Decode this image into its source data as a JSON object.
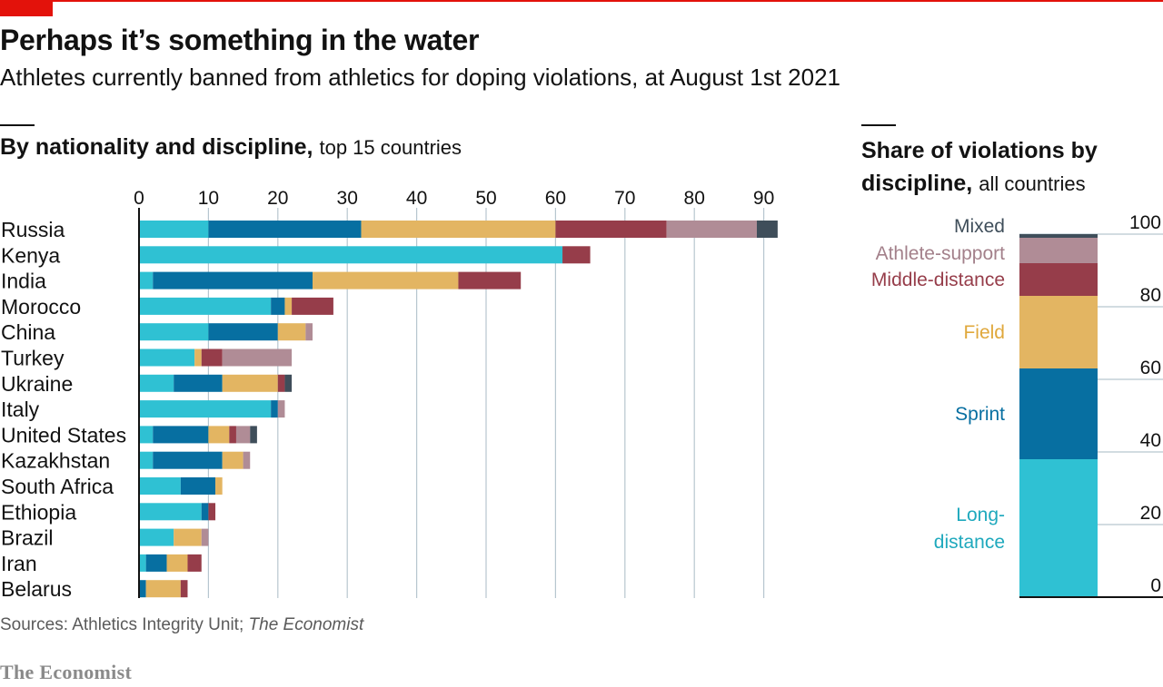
{
  "title": "Perhaps it’s something in the water",
  "subtitle": "Athletes currently banned from athletics for doping violations, at August 1st 2021",
  "left_heading": {
    "bold": "By nationality and discipline,",
    "light": "top 15 countries"
  },
  "right_heading": {
    "bold_1": "Share of violations by",
    "bold_2": "discipline,",
    "light": "all countries"
  },
  "source": {
    "prefix": "Sources: Athletics Integrity Unit; ",
    "italic": "The Economist"
  },
  "brand": "The Economist",
  "colors": {
    "Long-distance": "#2fc1d3",
    "Sprint": "#076fa1",
    "Field": "#e3b562",
    "Middle-distance": "#963d4a",
    "Athlete-support": "#b08c96",
    "Mixed": "#3f4e5a"
  },
  "label_colors": {
    "Long-distance": "#1fa9bd",
    "Sprint": "#076fa1",
    "Field": "#e0a83c",
    "Middle-distance": "#963d4a",
    "Athlete-support": "#a3808a",
    "Mixed": "#3f4e5a"
  },
  "chart_data": [
    {
      "type": "bar",
      "orientation": "horizontal",
      "stacked": true,
      "title": "By nationality and discipline, top 15 countries",
      "xlim": [
        0,
        95
      ],
      "xticks": [
        0,
        10,
        20,
        30,
        40,
        50,
        60,
        70,
        80,
        90
      ],
      "categories": [
        "Russia",
        "Kenya",
        "India",
        "Morocco",
        "China",
        "Turkey",
        "Ukraine",
        "Italy",
        "United States",
        "Kazakhstan",
        "South Africa",
        "Ethiopia",
        "Brazil",
        "Iran",
        "Belarus"
      ],
      "series": [
        {
          "name": "Long-distance",
          "values": [
            10,
            61,
            2,
            19,
            10,
            8,
            5,
            19,
            2,
            2,
            6,
            9,
            5,
            1,
            0
          ]
        },
        {
          "name": "Sprint",
          "values": [
            22,
            0,
            23,
            2,
            10,
            0,
            7,
            1,
            8,
            10,
            5,
            1,
            0,
            3,
            1
          ]
        },
        {
          "name": "Field",
          "values": [
            28,
            0,
            21,
            1,
            4,
            1,
            8,
            0,
            3,
            3,
            1,
            0,
            4,
            3,
            5
          ]
        },
        {
          "name": "Middle-distance",
          "values": [
            16,
            4,
            9,
            6,
            0,
            3,
            1,
            0,
            1,
            0,
            0,
            1,
            0,
            2,
            1
          ]
        },
        {
          "name": "Athlete-support",
          "values": [
            13,
            0,
            0,
            0,
            1,
            10,
            0,
            1,
            2,
            1,
            0,
            0,
            1,
            0,
            0
          ]
        },
        {
          "name": "Mixed",
          "values": [
            3,
            0,
            0,
            0,
            0,
            0,
            1,
            0,
            1,
            0,
            0,
            0,
            0,
            0,
            0
          ]
        }
      ]
    },
    {
      "type": "bar",
      "orientation": "vertical",
      "stacked": true,
      "title": "Share of violations by discipline, all countries",
      "ylim": [
        0,
        100
      ],
      "yticks": [
        0,
        20,
        40,
        60,
        80,
        100
      ],
      "segments": [
        {
          "name": "Long-distance",
          "label_lines": [
            "Long-",
            "distance"
          ],
          "value": 38
        },
        {
          "name": "Sprint",
          "label_lines": [
            "Sprint"
          ],
          "value": 25
        },
        {
          "name": "Field",
          "label_lines": [
            "Field"
          ],
          "value": 20
        },
        {
          "name": "Middle-distance",
          "label_lines": [
            "Middle-distance"
          ],
          "value": 9
        },
        {
          "name": "Athlete-support",
          "label_lines": [
            "Athlete-support"
          ],
          "value": 7
        },
        {
          "name": "Mixed",
          "label_lines": [
            "Mixed"
          ],
          "value": 1
        }
      ]
    }
  ]
}
